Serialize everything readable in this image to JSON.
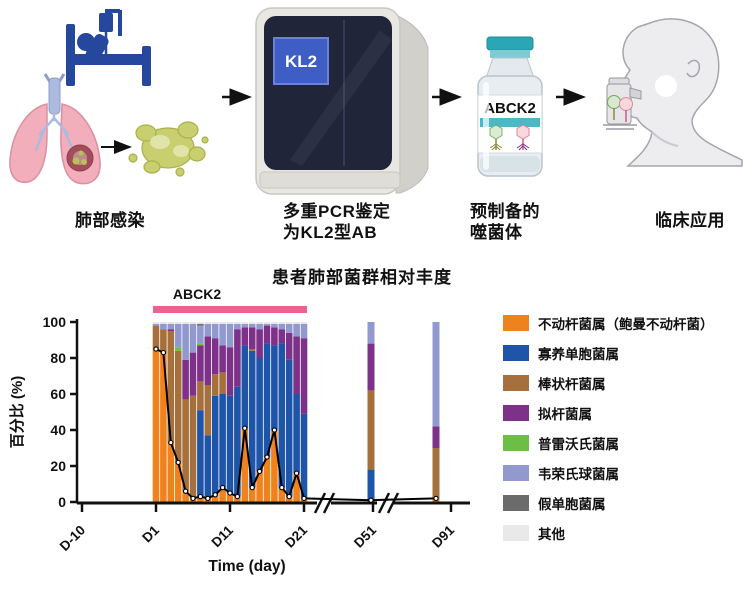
{
  "workflow": {
    "step1_label": "肺部感染",
    "step2_label_line1": "多重PCR鉴定",
    "step2_label_line2": "为KL2型AB",
    "machine_screen_text": "KL2",
    "step3_label_line1": "预制备的",
    "step3_label_line2": "噬菌体",
    "vial_label_text": "ABCK2",
    "step4_label": "临床应用"
  },
  "chart_data": {
    "type": "stacked-bar+line",
    "title": "患者肺部菌群相对丰度",
    "treatment_band": {
      "label": "ABCK2",
      "color": "#EF6290"
    },
    "ylabel": "百分比 (%)",
    "xlabel": "Time (day)",
    "ylim": [
      0,
      100
    ],
    "y_ticks": [
      0,
      20,
      40,
      60,
      80,
      100
    ],
    "x_tick_labels": [
      "D-10",
      "D1",
      "D11",
      "D21",
      "D51",
      "D91"
    ],
    "axis_breaks": [
      "between D21 and D51",
      "between D51 and D91"
    ],
    "legend_position": "right",
    "grid": false,
    "taxa": [
      {
        "name": "不动杆菌属（鲍曼不动杆菌）",
        "color": "#F0821E"
      },
      {
        "name": "寡养单胞菌属",
        "color": "#1F55A8"
      },
      {
        "name": "棒状杆菌属",
        "color": "#A5703C"
      },
      {
        "name": "拟杆菌属",
        "color": "#7D3189"
      },
      {
        "name": "普雷沃氏菌属",
        "color": "#6CBE45"
      },
      {
        "name": "韦荣氏球菌属",
        "color": "#9199CE"
      },
      {
        "name": "假单胞菌属",
        "color": "#6B6B6B"
      },
      {
        "name": "其他",
        "color": "#E9E9E9"
      }
    ],
    "bars": [
      {
        "day": "D1",
        "stack": [
          85,
          0,
          13,
          0,
          0,
          1,
          0,
          1
        ]
      },
      {
        "day": "D2",
        "stack": [
          83,
          0,
          13,
          0,
          0,
          3,
          0,
          1
        ]
      },
      {
        "day": "D3",
        "stack": [
          33,
          0,
          62,
          1,
          0,
          3,
          0,
          1
        ]
      },
      {
        "day": "D4",
        "stack": [
          22,
          0,
          62,
          0,
          2,
          13,
          0,
          1
        ]
      },
      {
        "day": "D5",
        "stack": [
          6,
          0,
          51,
          22,
          0,
          20,
          0,
          1
        ]
      },
      {
        "day": "D6",
        "stack": [
          2,
          0,
          57,
          24,
          0,
          16,
          0,
          1
        ]
      },
      {
        "day": "D7",
        "stack": [
          3,
          48,
          16,
          20,
          1,
          10,
          1,
          1
        ]
      },
      {
        "day": "D8",
        "stack": [
          2,
          35,
          28,
          27,
          0,
          7,
          0,
          1
        ]
      },
      {
        "day": "D9",
        "stack": [
          4,
          55,
          12,
          20,
          0,
          8,
          0,
          1
        ]
      },
      {
        "day": "D10",
        "stack": [
          8,
          52,
          12,
          15,
          0,
          12,
          0,
          1
        ]
      },
      {
        "day": "D11",
        "stack": [
          5,
          54,
          0,
          27,
          0,
          13,
          0,
          1
        ]
      },
      {
        "day": "D12",
        "stack": [
          3,
          61,
          0,
          32,
          0,
          3,
          0,
          1
        ]
      },
      {
        "day": "D13",
        "stack": [
          41,
          46,
          0,
          10,
          0,
          2,
          0,
          1
        ]
      },
      {
        "day": "D14",
        "stack": [
          8,
          76,
          1,
          12,
          0,
          2,
          0,
          1
        ]
      },
      {
        "day": "D15",
        "stack": [
          17,
          63,
          0,
          16,
          0,
          3,
          0,
          1
        ]
      },
      {
        "day": "D16",
        "stack": [
          25,
          63,
          0,
          10,
          0,
          1,
          0,
          1
        ]
      },
      {
        "day": "D17",
        "stack": [
          40,
          47,
          0,
          10,
          0,
          2,
          0,
          1
        ]
      },
      {
        "day": "D18",
        "stack": [
          8,
          80,
          0,
          8,
          0,
          3,
          0,
          1
        ]
      },
      {
        "day": "D19",
        "stack": [
          3,
          76,
          0,
          15,
          0,
          5,
          0,
          1
        ]
      },
      {
        "day": "D20",
        "stack": [
          16,
          44,
          0,
          32,
          0,
          7,
          0,
          1
        ]
      },
      {
        "day": "D21",
        "stack": [
          2,
          47,
          0,
          42,
          0,
          8,
          0,
          1
        ]
      },
      {
        "day": "D51",
        "stack": [
          1,
          17,
          44,
          26,
          0,
          12,
          0,
          0
        ]
      },
      {
        "day": "D91",
        "stack": [
          2,
          0,
          28,
          12,
          0,
          58,
          0,
          0
        ]
      }
    ],
    "line_series": {
      "name": "不动杆菌属（鲍曼不动杆菌）相对丰度",
      "values": [
        85,
        83,
        33,
        22,
        6,
        2,
        3,
        2,
        4,
        8,
        5,
        3,
        41,
        8,
        17,
        25,
        40,
        8,
        3,
        16,
        2,
        1,
        2
      ]
    }
  }
}
